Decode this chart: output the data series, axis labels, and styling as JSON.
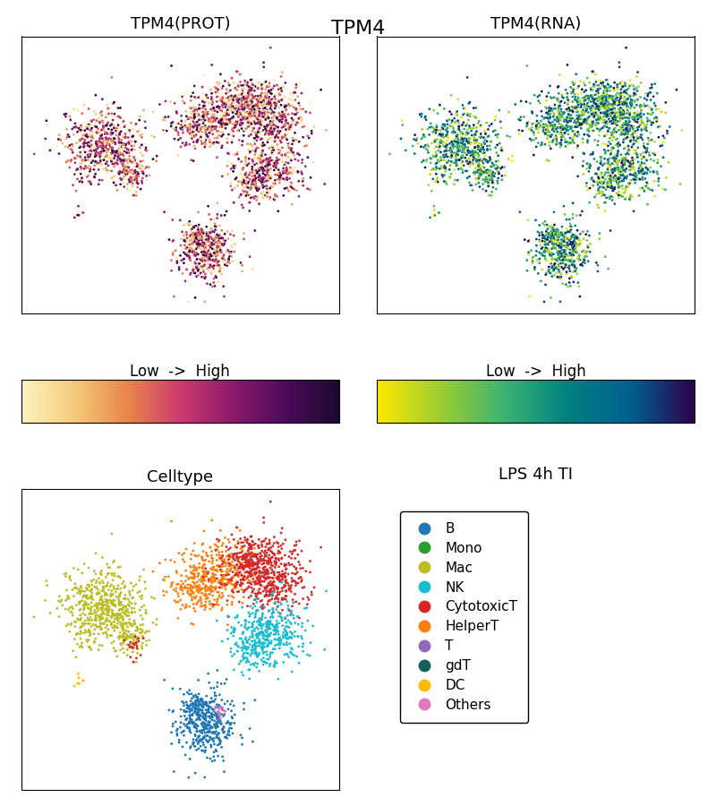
{
  "title": "TPM4",
  "subplot_titles": [
    "TPM4(PROT)",
    "TPM4(RNA)",
    "Celltype",
    "LPS 4h TI"
  ],
  "colorbar1_label": "Low  ->  High",
  "colorbar2_label": "Low  ->  High",
  "prot_colors": [
    "#fdf4c0",
    "#f5c97a",
    "#e8854a",
    "#cc3a6e",
    "#8b1a6b",
    "#4b0a5a",
    "#1a0a2e"
  ],
  "rna_colors": [
    "#fee800",
    "#9acd32",
    "#3cb371",
    "#008080",
    "#006090",
    "#2d004b"
  ],
  "cell_types": [
    "B",
    "Mono",
    "Mac",
    "NK",
    "CytotoxicT",
    "HelperT",
    "T",
    "gdT",
    "DC",
    "Others"
  ],
  "cell_colors": [
    "#1f77b4",
    "#2ca02c",
    "#bcbd22",
    "#17becf",
    "#d62728",
    "#ff7f0e",
    "#9467bd",
    "#17605a",
    "#ffbb00",
    "#e377c2"
  ],
  "background_color": "#ffffff",
  "seed": 42
}
